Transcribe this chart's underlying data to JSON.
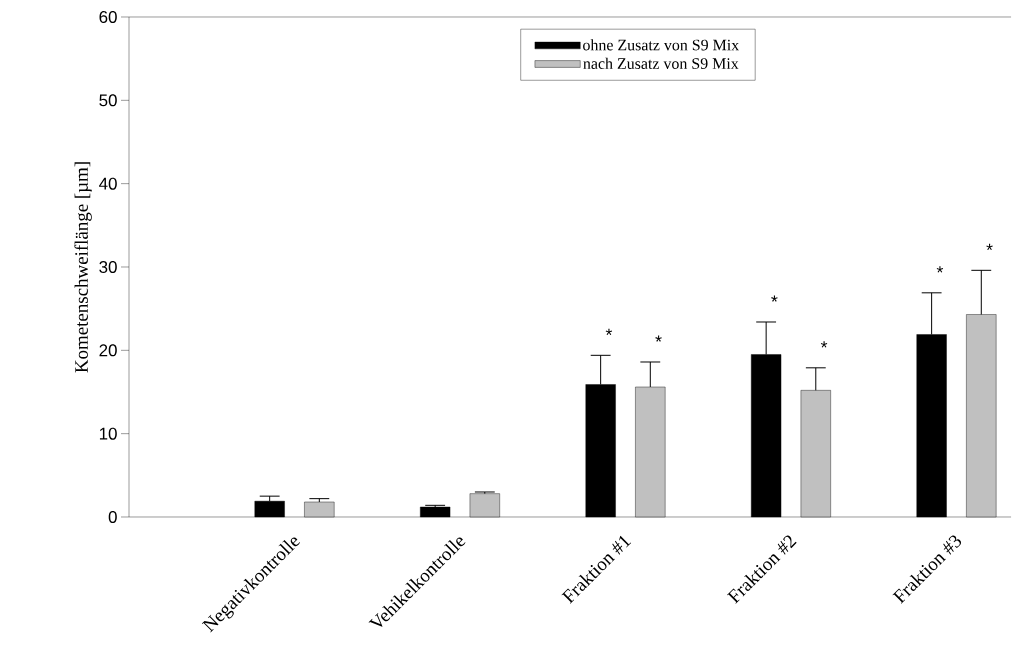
{
  "chart_data": {
    "type": "bar",
    "ylabel": "Kometenschweiflänge [µm]",
    "categories": [
      "Negativkontrolle",
      "Vehikelkontrolle",
      "Fraktion #1",
      "Fraktion #2",
      "Fraktion #3"
    ],
    "series": [
      {
        "name": "ohne Zusatz von S9 Mix",
        "color": "#000000",
        "values": [
          1.9,
          1.2,
          15.9,
          19.5,
          21.9
        ],
        "errors": [
          [
            1.9,
            2.5
          ],
          [
            1.2,
            1.4
          ],
          [
            15.9,
            19.4
          ],
          [
            19.5,
            23.4
          ],
          [
            21.9,
            26.9
          ]
        ]
      },
      {
        "name": "nach Zusatz von S9 Mix",
        "color": "#c0c0c0",
        "values": [
          1.8,
          2.8,
          15.6,
          15.2,
          24.3
        ],
        "errors": [
          [
            1.8,
            2.2
          ],
          [
            2.8,
            3.0
          ],
          [
            15.6,
            18.6
          ],
          [
            15.2,
            17.9
          ],
          [
            24.3,
            29.6
          ]
        ]
      }
    ],
    "ylim": [
      0,
      60
    ],
    "yticks": [
      0,
      10,
      20,
      30,
      40,
      50,
      60
    ],
    "grid": false,
    "legend": "top",
    "annotations": [
      "*",
      "*",
      "*",
      "*",
      "*",
      "*"
    ]
  }
}
